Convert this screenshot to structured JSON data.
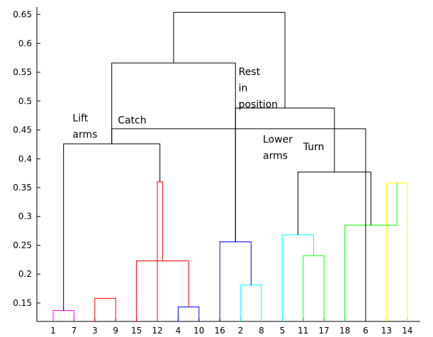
{
  "chart_data": {
    "type": "dendrogram",
    "leaves": [
      "1",
      "7",
      "3",
      "9",
      "15",
      "12",
      "4",
      "10",
      "16",
      "2",
      "8",
      "5",
      "11",
      "17",
      "18",
      "6",
      "13",
      "14"
    ],
    "yticks": [
      "0.15",
      "0.2",
      "0.25",
      "0.3",
      "0.35",
      "0.4",
      "0.45",
      "0.5",
      "0.55",
      "0.6",
      "0.65"
    ],
    "ylim": [
      0.118,
      0.663
    ],
    "merges": [
      {
        "left": 0,
        "right": 1,
        "height": 0.137,
        "color": "#ff00ff"
      },
      {
        "left": 2,
        "right": 3,
        "height": 0.158,
        "color": "#ff0000"
      },
      {
        "left": 6,
        "right": 7,
        "height": 0.143,
        "color": "#0000ff"
      },
      {
        "left": 9,
        "right": 10,
        "height": 0.181,
        "color": "#00ffff"
      },
      {
        "left": 12,
        "right": 13,
        "height": 0.232,
        "color": "#00ff00"
      },
      {
        "left": 16,
        "right": 17,
        "height": 0.358,
        "color": "#ffff00"
      },
      {
        "left": 20,
        "right": 4,
        "height": 0.223,
        "color": "#ff0000"
      },
      {
        "left": 24,
        "right": 5,
        "height": 0.36,
        "color": "#ff0000"
      },
      {
        "left": 21,
        "right": 8,
        "height": 0.256,
        "color": "#0000ff"
      },
      {
        "left": 22,
        "right": 11,
        "height": 0.268,
        "color": "#00ffff"
      },
      {
        "left": 23,
        "right": 14,
        "height": 0.285,
        "color": "#00ff00"
      },
      {
        "left": 18,
        "right": 25,
        "height": 0.426,
        "color": "#000000"
      },
      {
        "left": 27,
        "right": 28,
        "height": 0.377,
        "color": "#000000"
      },
      {
        "left": 15,
        "right": 29,
        "height": 0.452,
        "color": "#000000"
      },
      {
        "left": 26,
        "right": 30,
        "height": 0.488,
        "color": "#000000"
      },
      {
        "left": 29,
        "right": 26,
        "height": 0.566,
        "color": "#000000"
      },
      {
        "left": 33,
        "right": 32,
        "height": 0.654,
        "color": "#000000"
      }
    ],
    "annotations": [
      {
        "lines": [
          "Lift",
          "arms"
        ],
        "x": 1.0,
        "y": 0.465
      },
      {
        "lines": [
          "Catch"
        ],
        "x": 3.0,
        "y": 0.461
      },
      {
        "lines": [
          "Rest",
          "in",
          "position"
        ],
        "x": 9.0,
        "y": 0.545
      },
      {
        "lines": [
          "Lower",
          "arms"
        ],
        "x": 10.0,
        "y": 0.428
      },
      {
        "lines": [
          "Turn"
        ],
        "x": 12.0,
        "y": 0.415
      }
    ]
  }
}
